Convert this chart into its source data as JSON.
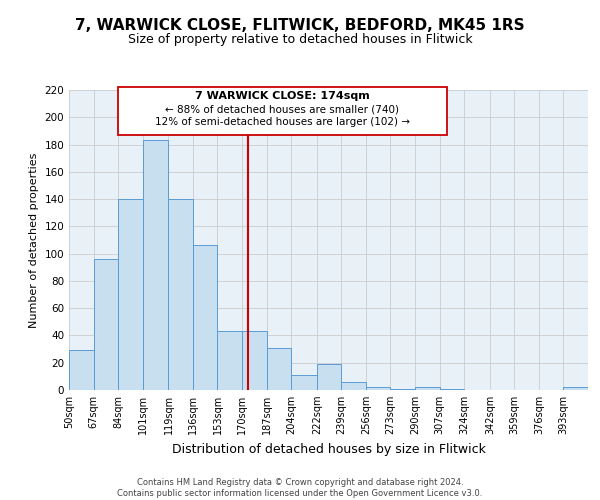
{
  "title": "7, WARWICK CLOSE, FLITWICK, BEDFORD, MK45 1RS",
  "subtitle": "Size of property relative to detached houses in Flitwick",
  "xlabel": "Distribution of detached houses by size in Flitwick",
  "ylabel": "Number of detached properties",
  "bin_labels": [
    "50sqm",
    "67sqm",
    "84sqm",
    "101sqm",
    "119sqm",
    "136sqm",
    "153sqm",
    "170sqm",
    "187sqm",
    "204sqm",
    "222sqm",
    "239sqm",
    "256sqm",
    "273sqm",
    "290sqm",
    "307sqm",
    "324sqm",
    "342sqm",
    "359sqm",
    "376sqm",
    "393sqm"
  ],
  "bar_heights": [
    29,
    96,
    140,
    183,
    140,
    106,
    43,
    43,
    31,
    11,
    19,
    6,
    2,
    1,
    2,
    1,
    0,
    0,
    0,
    0,
    2
  ],
  "bin_edges": [
    50,
    67,
    84,
    101,
    119,
    136,
    153,
    170,
    187,
    204,
    222,
    239,
    256,
    273,
    290,
    307,
    324,
    342,
    359,
    376,
    393,
    410
  ],
  "bar_color": "#c8dff0",
  "bar_edge_color": "#5b9bd5",
  "vline_x": 174,
  "vline_color": "#cc0000",
  "ylim": [
    0,
    220
  ],
  "yticks": [
    0,
    20,
    40,
    60,
    80,
    100,
    120,
    140,
    160,
    180,
    200,
    220
  ],
  "annotation_title": "7 WARWICK CLOSE: 174sqm",
  "annotation_line1": "← 88% of detached houses are smaller (740)",
  "annotation_line2": "12% of semi-detached houses are larger (102) →",
  "annotation_box_color": "#ffffff",
  "annotation_box_edge": "#cc0000",
  "footer_line1": "Contains HM Land Registry data © Crown copyright and database right 2024.",
  "footer_line2": "Contains public sector information licensed under the Open Government Licence v3.0.",
  "bg_color": "#ffffff",
  "plot_bg_color": "#e8f0f8",
  "grid_color": "#cccccc",
  "title_fontsize": 11,
  "subtitle_fontsize": 9,
  "xlabel_fontsize": 9,
  "ylabel_fontsize": 8
}
